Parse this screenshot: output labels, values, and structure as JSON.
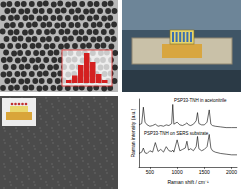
{
  "chart_data": {
    "type": "line",
    "x_label": "Raman shift / cm⁻¹",
    "y_label": "Raman intensity (a.u.)",
    "x": [
      300,
      350,
      380,
      410,
      450,
      500,
      550,
      600,
      650,
      700,
      750,
      800,
      850,
      900,
      920,
      940,
      1000,
      1050,
      1100,
      1150,
      1180,
      1210,
      1250,
      1300,
      1350,
      1375,
      1400,
      1450,
      1500,
      1550,
      1590,
      1620,
      1650,
      1700,
      1800,
      1900,
      2000,
      2100
    ],
    "series": [
      {
        "name": "PSP33-TNH in acetonitrile",
        "color": "#000000",
        "values": [
          62,
          64,
          88,
          66,
          62,
          60,
          61,
          63,
          60,
          61,
          60,
          62,
          61,
          64,
          92,
          63,
          66,
          62,
          61,
          63,
          65,
          62,
          61,
          63,
          68,
          80,
          64,
          62,
          62,
          66,
          84,
          63,
          61,
          60,
          59,
          58,
          58,
          58
        ]
      },
      {
        "name": "PSP33-TNH on SERS substrate",
        "color": "#000000",
        "values": [
          20,
          22,
          28,
          21,
          20,
          24,
          22,
          36,
          23,
          26,
          22,
          30,
          24,
          23,
          25,
          22,
          40,
          24,
          26,
          28,
          38,
          25,
          27,
          24,
          30,
          45,
          27,
          24,
          26,
          30,
          48,
          28,
          24,
          22,
          20,
          19,
          18,
          18
        ]
      }
    ],
    "xlim": [
      300,
      2100
    ],
    "xticks": [
      500,
      1000,
      1500,
      2000
    ],
    "ylim": [
      0,
      100
    ],
    "tick_labels": "x",
    "grid": false
  },
  "tem_inset": {
    "histogram_counts": [
      2,
      5,
      12,
      20,
      14,
      6,
      2
    ],
    "color": "#d42020"
  }
}
